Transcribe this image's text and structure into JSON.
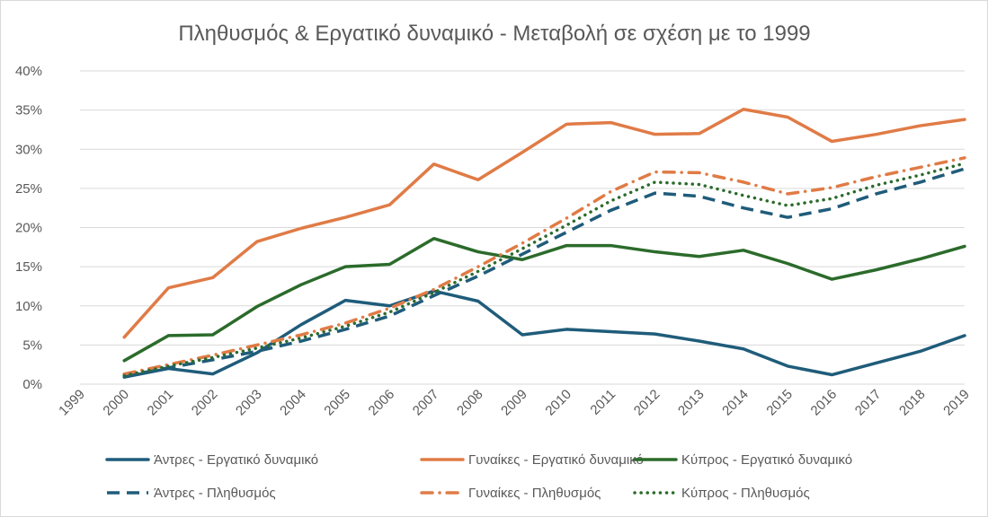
{
  "chart_data": {
    "type": "line",
    "title": "Πληθυσμός & Εργατικό δυναμικό - Μεταβολή σε σχέση με το 1999",
    "xlabel": "",
    "ylabel": "",
    "ylim": [
      0,
      0.4
    ],
    "grid": true,
    "legend_position": "bottom",
    "categories": [
      "1999",
      "2000",
      "2001",
      "2002",
      "2003",
      "2004",
      "2005",
      "2006",
      "2007",
      "2008",
      "2009",
      "2010",
      "2011",
      "2012",
      "2013",
      "2014",
      "2015",
      "2016",
      "2017",
      "2018",
      "2019"
    ],
    "y_ticks": [
      {
        "value": 0.0,
        "label": "0%"
      },
      {
        "value": 0.05,
        "label": "5%"
      },
      {
        "value": 0.1,
        "label": "10%"
      },
      {
        "value": 0.15,
        "label": "15%"
      },
      {
        "value": 0.2,
        "label": "20%"
      },
      {
        "value": 0.25,
        "label": "25%"
      },
      {
        "value": 0.3,
        "label": "30%"
      },
      {
        "value": 0.35,
        "label": "35%"
      },
      {
        "value": 0.4,
        "label": "40%"
      }
    ],
    "series": [
      {
        "name": "Άντρες - Εργατικό δυναμικό",
        "color": "#1f5c7a",
        "dash": "solid",
        "values": [
          null,
          0.009,
          0.02,
          0.013,
          0.04,
          0.076,
          0.107,
          0.1,
          0.119,
          0.106,
          0.063,
          0.07,
          0.067,
          0.064,
          0.055,
          0.045,
          0.023,
          0.012,
          0.027,
          0.042,
          0.062
        ]
      },
      {
        "name": "Γυναίκες - Εργατικό δυναμικό",
        "color": "#e07b46",
        "dash": "solid",
        "values": [
          null,
          0.06,
          0.123,
          0.136,
          0.182,
          0.199,
          0.213,
          0.229,
          0.281,
          0.261,
          0.296,
          0.332,
          0.334,
          0.319,
          0.32,
          0.351,
          0.341,
          0.31,
          0.319,
          0.33,
          0.338
        ]
      },
      {
        "name": "Κύπρος - Εργατικό δυναμικό",
        "color": "#2b6b2b",
        "dash": "solid",
        "values": [
          null,
          0.03,
          0.062,
          0.063,
          0.099,
          0.127,
          0.15,
          0.153,
          0.186,
          0.169,
          0.159,
          0.177,
          0.177,
          0.169,
          0.163,
          0.171,
          0.154,
          0.134,
          0.146,
          0.16,
          0.176
        ]
      },
      {
        "name": "Άντρες - Πληθυσμός",
        "color": "#1f5c7a",
        "dash": "dash",
        "values": [
          null,
          0.01,
          0.021,
          0.031,
          0.042,
          0.055,
          0.07,
          0.087,
          0.113,
          0.138,
          0.166,
          0.194,
          0.222,
          0.244,
          0.24,
          0.225,
          0.213,
          0.224,
          0.243,
          0.258,
          0.275
        ]
      },
      {
        "name": "Γυναίκες - Πληθυσμός",
        "color": "#e07b46",
        "dash": "dashdot",
        "values": [
          null,
          0.013,
          0.025,
          0.037,
          0.05,
          0.063,
          0.078,
          0.097,
          0.121,
          0.15,
          0.18,
          0.212,
          0.246,
          0.271,
          0.27,
          0.258,
          0.243,
          0.251,
          0.265,
          0.277,
          0.289
        ]
      },
      {
        "name": "Κύπρος - Πληθυσμός",
        "color": "#2b6b2b",
        "dash": "dot",
        "values": [
          null,
          0.011,
          0.023,
          0.034,
          0.046,
          0.059,
          0.074,
          0.092,
          0.117,
          0.144,
          0.173,
          0.203,
          0.234,
          0.258,
          0.255,
          0.241,
          0.228,
          0.237,
          0.254,
          0.267,
          0.282
        ]
      }
    ]
  }
}
